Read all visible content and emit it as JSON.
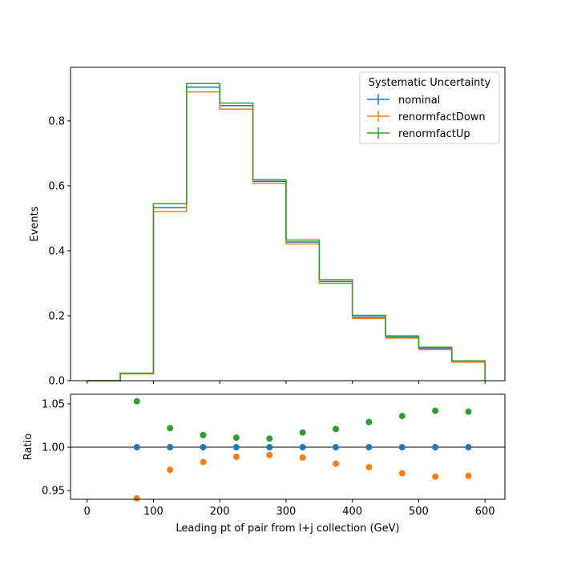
{
  "chart_data": [
    {
      "type": "line",
      "style": "step-histogram",
      "x_edges": [
        0,
        50,
        100,
        150,
        200,
        250,
        300,
        350,
        400,
        450,
        500,
        550,
        600
      ],
      "xlim": [
        -25,
        630
      ],
      "ylim": [
        0,
        0.965
      ],
      "ylabel": "Events",
      "y_ticks": [
        0.0,
        0.2,
        0.4,
        0.6,
        0.8
      ],
      "y_tick_labels": [
        "0.0",
        "0.2",
        "0.4",
        "0.6",
        "0.8"
      ],
      "legend": {
        "title": "Systematic Uncertainty",
        "position": "top-right"
      },
      "series": [
        {
          "name": "nominal",
          "color": "#1f77b4",
          "values": [
            0.0,
            0.022,
            0.533,
            0.904,
            0.847,
            0.614,
            0.427,
            0.305,
            0.196,
            0.134,
            0.099,
            0.059
          ]
        },
        {
          "name": "renormfactDown",
          "color": "#ff7f0e",
          "values": [
            0.0,
            0.021,
            0.521,
            0.889,
            0.836,
            0.608,
            0.421,
            0.3,
            0.192,
            0.131,
            0.096,
            0.057
          ]
        },
        {
          "name": "renormfactUp",
          "color": "#2ca02c",
          "values": [
            0.0,
            0.023,
            0.545,
            0.915,
            0.855,
            0.619,
            0.433,
            0.311,
            0.201,
            0.138,
            0.103,
            0.061
          ]
        }
      ]
    },
    {
      "type": "scatter",
      "x": [
        75,
        125,
        175,
        225,
        275,
        325,
        375,
        425,
        475,
        525,
        575
      ],
      "xlim": [
        -25,
        630
      ],
      "ylim": [
        0.94,
        1.061
      ],
      "xlabel": "Leading pt of pair from l+j collection (GeV)",
      "ylabel": "Ratio",
      "reference_line": 1.0,
      "x_ticks": [
        0,
        100,
        200,
        300,
        400,
        500,
        600
      ],
      "x_tick_labels": [
        "0",
        "100",
        "200",
        "300",
        "400",
        "500",
        "600"
      ],
      "y_ticks": [
        0.95,
        1.0,
        1.05
      ],
      "y_tick_labels": [
        "0.95",
        "1.00",
        "1.05"
      ],
      "series": [
        {
          "color": "#1f77b4",
          "values": [
            1.0,
            1.0,
            1.0,
            1.0,
            1.0,
            1.0,
            1.0,
            1.0,
            1.0,
            1.0,
            1.0
          ]
        },
        {
          "color": "#ff7f0e",
          "values": [
            0.941,
            0.974,
            0.983,
            0.989,
            0.991,
            0.988,
            0.981,
            0.977,
            0.97,
            0.966,
            0.967
          ]
        },
        {
          "color": "#2ca02c",
          "values": [
            1.053,
            1.022,
            1.014,
            1.011,
            1.01,
            1.017,
            1.021,
            1.029,
            1.036,
            1.042,
            1.041
          ]
        }
      ]
    }
  ]
}
